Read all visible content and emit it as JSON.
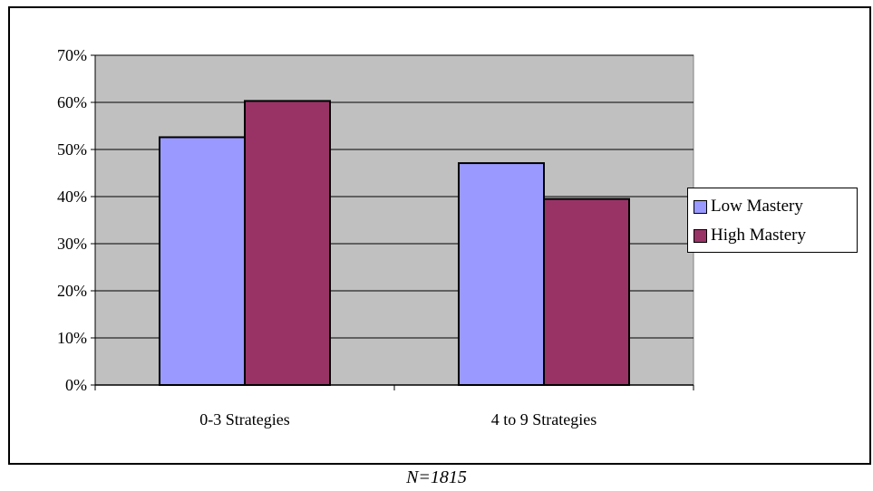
{
  "chart_data": {
    "type": "bar",
    "categories": [
      "0-3 Strategies",
      "4 to 9 Strategies"
    ],
    "series": [
      {
        "name": "Low Mastery",
        "values": [
          52.6,
          47.1
        ],
        "color": "#9999ff"
      },
      {
        "name": "High Mastery",
        "values": [
          60.3,
          39.5
        ],
        "color": "#993366"
      }
    ],
    "ylim": [
      0,
      70
    ],
    "y_ticks": [
      "0%",
      "10%",
      "20%",
      "30%",
      "40%",
      "50%",
      "60%",
      "70%"
    ],
    "legend_position": "right",
    "grid": true,
    "plot_background": "#c0c0c0"
  },
  "legend": {
    "low_label": "Low Mastery",
    "high_label": "High Mastery"
  },
  "footnote": "N=1815"
}
